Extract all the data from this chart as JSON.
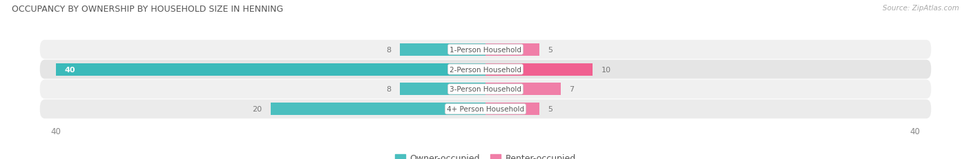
{
  "title": "OCCUPANCY BY OWNERSHIP BY HOUSEHOLD SIZE IN HENNING",
  "source": "Source: ZipAtlas.com",
  "categories": [
    "1-Person Household",
    "2-Person Household",
    "3-Person Household",
    "4+ Person Household"
  ],
  "owner_values": [
    8,
    40,
    8,
    20
  ],
  "renter_values": [
    5,
    10,
    7,
    5
  ],
  "owner_color": "#4bbfbf",
  "renter_color": "#f07fa8",
  "owner_color_bright": "#3bbaba",
  "renter_color_bright": "#f06090",
  "row_bg_light": "#efefef",
  "row_bg_dark": "#e2e2e2",
  "x_max": 40,
  "label_color": "#777777",
  "title_color": "#555555",
  "source_color": "#aaaaaa",
  "legend_owner": "Owner-occupied",
  "legend_renter": "Renter-occupied",
  "cat_label_color": "#555555"
}
